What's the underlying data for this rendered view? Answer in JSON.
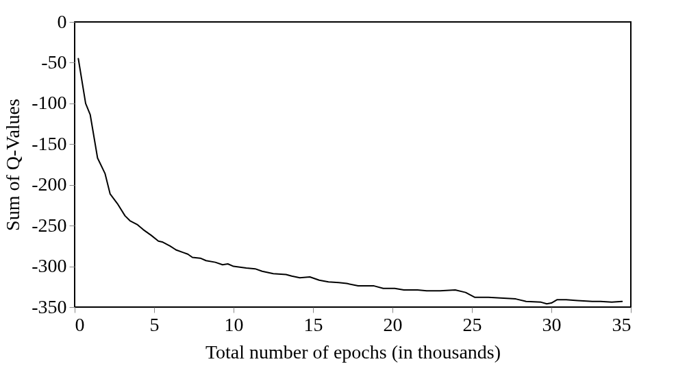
{
  "chart_data": {
    "type": "line",
    "xlabel": "Total number of epochs (in thousands)",
    "ylabel": "Sum of Q-Values",
    "xlim": [
      0,
      35
    ],
    "xticks": [
      0,
      5,
      10,
      15,
      20,
      25,
      30,
      35
    ],
    "ylim": [
      -350,
      0
    ],
    "yticks": [
      -350,
      -300,
      -250,
      -200,
      -150,
      -100,
      -50,
      0
    ],
    "grid": false,
    "marker": "none",
    "line_style": "solid",
    "series": [
      {
        "color": "#000000",
        "x": [
          0.23,
          0.69,
          0.98,
          1.44,
          1.91,
          2.23,
          2.69,
          3.17,
          3.48,
          3.96,
          4.32,
          4.82,
          5.27,
          5.51,
          6.0,
          6.4,
          6.83,
          7.12,
          7.41,
          7.91,
          8.27,
          8.85,
          9.31,
          9.64,
          10.0,
          10.8,
          11.36,
          11.8,
          12.5,
          13.3,
          13.66,
          14.17,
          14.8,
          15.39,
          15.97,
          16.62,
          17.12,
          17.84,
          18.84,
          19.42,
          20.14,
          20.72,
          21.58,
          22.15,
          23.0,
          23.95,
          24.6,
          25.17,
          26.04,
          27.76,
          28.41,
          29.35,
          29.71,
          30.0,
          30.35,
          30.93,
          31.65,
          32.58,
          33.09,
          33.8,
          34.45
        ],
        "values": [
          -45,
          -100,
          -114,
          -167,
          -186,
          -211,
          -223,
          -238,
          -244,
          -249,
          -255,
          -262,
          -269,
          -270,
          -275,
          -280,
          -283,
          -285,
          -289,
          -290,
          -293,
          -295,
          -298,
          -297,
          -300,
          -302,
          -303,
          -306,
          -309,
          -310,
          -312,
          -314,
          -313,
          -317,
          -319,
          -320,
          -321,
          -324,
          -324,
          -327,
          -327,
          -329,
          -329,
          -330,
          -330,
          -329,
          -332,
          -338,
          -338,
          -340,
          -343,
          -344,
          -346,
          -345,
          -341,
          -341,
          -342,
          -343,
          -343,
          -344,
          -343
        ]
      }
    ]
  }
}
